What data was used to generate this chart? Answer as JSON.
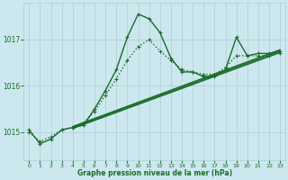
{
  "title": "Graphe pression niveau de la mer (hPa)",
  "bg_color": "#cce8ee",
  "grid_color": "#aaccd4",
  "line_color": "#1a6b2a",
  "xlim": [
    -0.5,
    23.5
  ],
  "ylim": [
    1014.4,
    1017.8
  ],
  "yticks": [
    1015,
    1016,
    1017
  ],
  "xticks": [
    0,
    1,
    2,
    3,
    4,
    5,
    6,
    7,
    8,
    9,
    10,
    11,
    12,
    13,
    14,
    15,
    16,
    17,
    18,
    19,
    20,
    21,
    22,
    23
  ],
  "lines": [
    {
      "x": [
        0,
        1,
        2,
        3,
        4,
        5,
        6,
        7,
        8,
        9,
        10,
        11,
        12,
        13,
        14,
        15,
        16,
        17,
        18,
        19,
        20,
        21,
        22,
        23
      ],
      "y": [
        1015.05,
        1014.75,
        1014.85,
        1015.05,
        1015.1,
        1015.15,
        1015.5,
        1015.9,
        1016.35,
        1017.05,
        1017.55,
        1017.45,
        1017.15,
        1016.6,
        1016.3,
        1016.3,
        1016.2,
        1016.2,
        1016.35,
        1017.05,
        1016.65,
        1016.7,
        1016.7,
        1016.75
      ],
      "marker": "+",
      "lw": 1.0,
      "dotted": false,
      "markersize": 3.0
    },
    {
      "x": [
        0,
        1,
        2,
        3,
        4,
        5,
        6,
        7,
        8,
        9,
        10,
        11,
        12,
        13,
        14,
        15,
        16,
        17,
        18,
        19,
        20,
        21,
        22,
        23
      ],
      "y": [
        1015.0,
        1014.8,
        1014.9,
        1015.05,
        1015.1,
        1015.2,
        1015.45,
        1015.8,
        1016.15,
        1016.55,
        1016.85,
        1017.0,
        1016.75,
        1016.55,
        1016.35,
        1016.3,
        1016.25,
        1016.25,
        1016.4,
        1016.65,
        1016.65,
        1016.65,
        1016.65,
        1016.7
      ],
      "marker": "+",
      "lw": 1.0,
      "dotted": true,
      "markersize": 3.0
    },
    {
      "x": [
        4,
        23
      ],
      "y": [
        1015.1,
        1016.75
      ],
      "marker": "none",
      "lw": 1.0,
      "dotted": false,
      "markersize": 0
    },
    {
      "x": [
        4,
        23
      ],
      "y": [
        1015.12,
        1016.78
      ],
      "marker": "none",
      "lw": 1.0,
      "dotted": false,
      "markersize": 0
    },
    {
      "x": [
        4,
        23
      ],
      "y": [
        1015.08,
        1016.72
      ],
      "marker": "none",
      "lw": 1.0,
      "dotted": false,
      "markersize": 0
    }
  ]
}
